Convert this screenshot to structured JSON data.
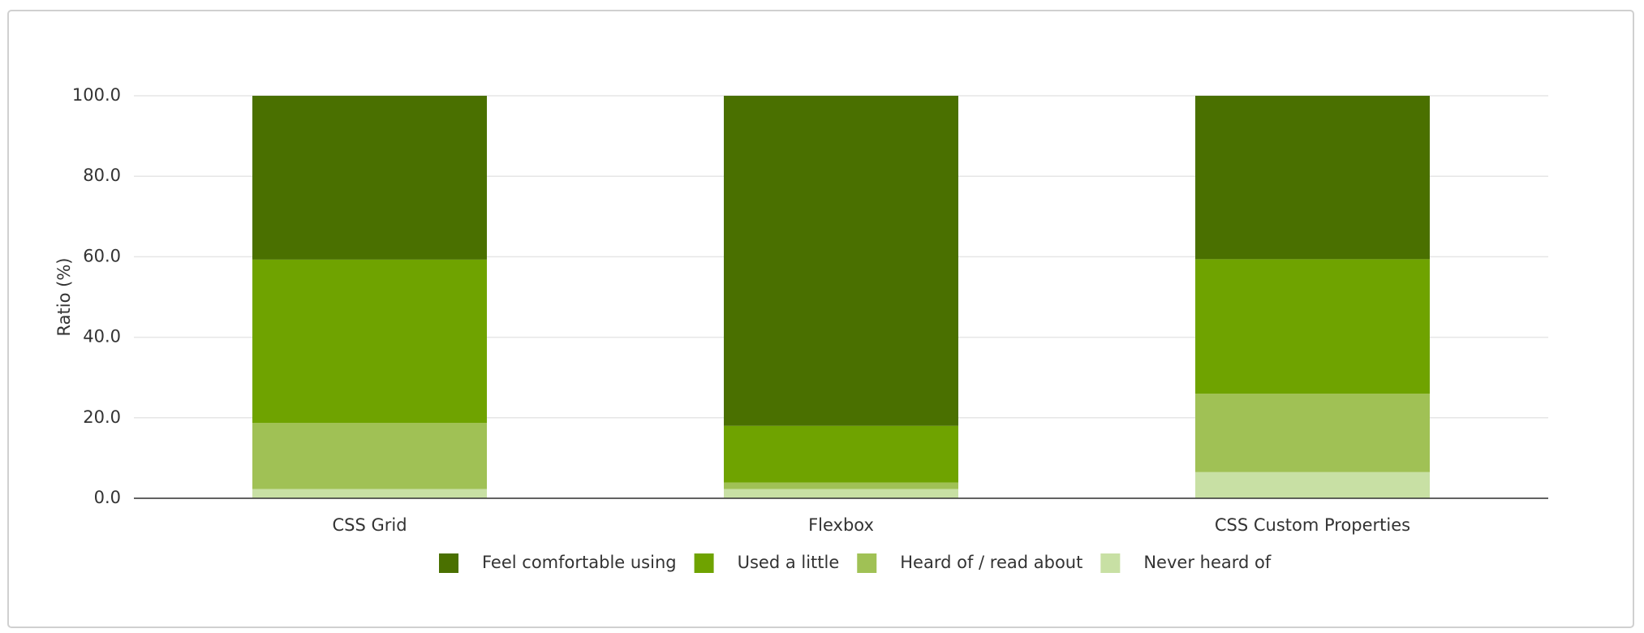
{
  "chart_data": {
    "type": "stacked_bar",
    "y_label": "Ratio (%)",
    "categories": [
      "CSS Grid",
      "Flexbox",
      "CSS Custom Properties"
    ],
    "series": [
      {
        "name": "Never heard of",
        "color": "#c8e0a4",
        "values": [
          2.3,
          2.3,
          6.5
        ]
      },
      {
        "name": "Heard of / read about",
        "color": "#a0c155",
        "values": [
          16.4,
          1.6,
          19.5
        ]
      },
      {
        "name": "Used a little",
        "color": "#6fa300",
        "values": [
          40.6,
          14.1,
          33.4
        ]
      },
      {
        "name": "Feel comfortable using",
        "color": "#4a7000",
        "values": [
          40.7,
          82.0,
          40.6
        ]
      }
    ],
    "ylim": [
      0,
      100
    ],
    "yticks": [
      {
        "value": 0,
        "label": "0.0"
      },
      {
        "value": 20,
        "label": "20.0"
      },
      {
        "value": 40,
        "label": "40.0"
      },
      {
        "value": 60,
        "label": "60.0"
      },
      {
        "value": 80,
        "label": "80.0"
      },
      {
        "value": 100,
        "label": "100.0"
      }
    ],
    "grid": true
  }
}
